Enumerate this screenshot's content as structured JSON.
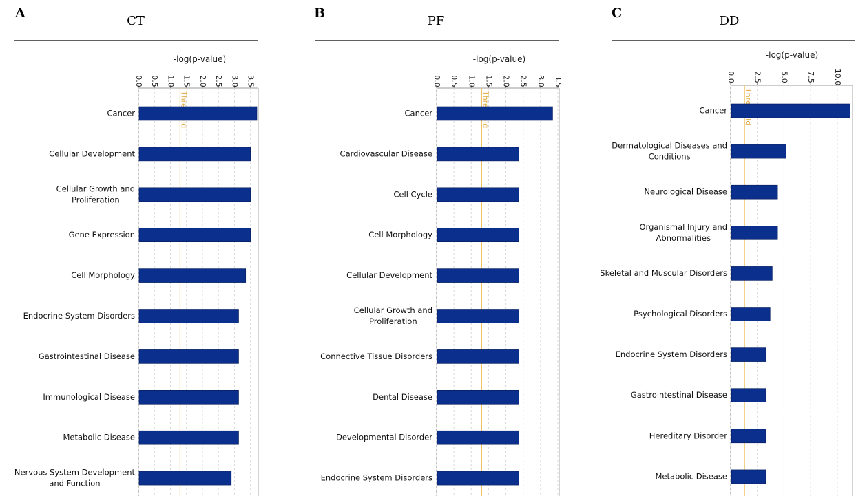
{
  "chart_data": [
    {
      "type": "bar",
      "orientation": "horizontal",
      "panel_label": "A",
      "title": "CT",
      "xlabel": "-log(p-value)",
      "threshold_label": "Threshold",
      "threshold": 1.3,
      "xlim": [
        0,
        3.7
      ],
      "xticks": [
        "0.0",
        "0.5",
        "1.0",
        "1.5",
        "2.0",
        "2.5",
        "3.0",
        "3.5"
      ],
      "tick_values": [
        0,
        0.5,
        1.0,
        1.5,
        2.0,
        2.5,
        3.0,
        3.5
      ],
      "bar_color": "#0b2f8c",
      "threshold_color": "#f0c060",
      "categories": [
        [
          "Cancer"
        ],
        [
          "Cellular Development"
        ],
        [
          "Cellular Growth and",
          "Proliferation"
        ],
        [
          "Gene Expression"
        ],
        [
          "Cell Morphology"
        ],
        [
          "Endocrine System Disorders"
        ],
        [
          "Gastrointestinal Disease"
        ],
        [
          "Immunological Disease"
        ],
        [
          "Metabolic Disease"
        ],
        [
          "Nervous System Development",
          "and Function"
        ]
      ],
      "values": [
        3.7,
        3.5,
        3.5,
        3.5,
        3.35,
        3.13,
        3.13,
        3.13,
        3.13,
        2.9
      ]
    },
    {
      "type": "bar",
      "orientation": "horizontal",
      "panel_label": "B",
      "title": "PF",
      "xlabel": "-log(p-value)",
      "threshold_label": "Threshold",
      "threshold": 1.3,
      "xlim": [
        0,
        3.5
      ],
      "xticks": [
        "0.0",
        "0.5",
        "1.0",
        "1.5",
        "2.0",
        "2.5",
        "3.0",
        "3.5"
      ],
      "tick_values": [
        0,
        0.5,
        1.0,
        1.5,
        2.0,
        2.5,
        3.0,
        3.5
      ],
      "bar_color": "#0b2f8c",
      "threshold_color": "#f0c060",
      "categories": [
        [
          "Cancer"
        ],
        [
          "Cardiovascular Disease"
        ],
        [
          "Cell Cycle"
        ],
        [
          "Cell Morphology"
        ],
        [
          "Cellular Development"
        ],
        [
          "Cellular Growth and",
          "Proliferation"
        ],
        [
          "Connective Tissue Disorders"
        ],
        [
          "Dental Disease"
        ],
        [
          "Developmental Disorder"
        ],
        [
          "Endocrine System Disorders"
        ]
      ],
      "values": [
        3.35,
        2.38,
        2.38,
        2.38,
        2.38,
        2.38,
        2.38,
        2.38,
        2.38,
        2.38
      ]
    },
    {
      "type": "bar",
      "orientation": "horizontal",
      "panel_label": "C",
      "title": "DD",
      "xlabel": "-log(p-value)",
      "threshold_label": "Threshold",
      "threshold": 1.3,
      "xlim": [
        0,
        11.3
      ],
      "xticks": [
        "0.0",
        "2.5",
        "5.0",
        "7.5",
        "10.0"
      ],
      "tick_values": [
        0,
        2.5,
        5.0,
        7.5,
        10.0
      ],
      "bar_color": "#0b2f8c",
      "threshold_color": "#f0c060",
      "categories": [
        [
          "Cancer"
        ],
        [
          "Dermatological Diseases and",
          "Conditions"
        ],
        [
          "Neurological Disease"
        ],
        [
          "Organismal Injury and",
          "Abnormalities"
        ],
        [
          "Skeletal and Muscular Disorders"
        ],
        [
          "Psychological Disorders"
        ],
        [
          "Endocrine System Disorders"
        ],
        [
          "Gastrointestinal Disease"
        ],
        [
          "Hereditary Disorder"
        ],
        [
          "Metabolic Disease"
        ]
      ],
      "values": [
        11.2,
        5.2,
        4.4,
        4.4,
        3.9,
        3.7,
        3.3,
        3.3,
        3.3,
        3.3
      ]
    }
  ]
}
